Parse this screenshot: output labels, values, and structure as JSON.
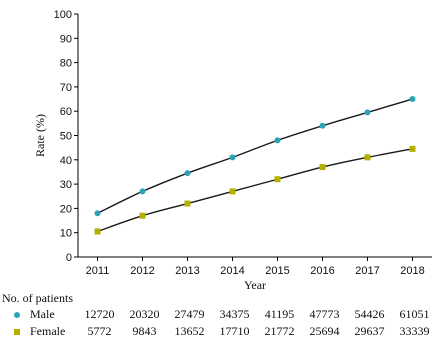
{
  "chart_data": {
    "type": "line",
    "x": [
      2011,
      2012,
      2013,
      2014,
      2015,
      2016,
      2017,
      2018
    ],
    "xlabel": "Year",
    "ylabel": "Rate (%)",
    "ylim": [
      0,
      100
    ],
    "yticks": [
      0,
      10,
      20,
      30,
      40,
      50,
      60,
      70,
      80,
      90,
      100
    ],
    "grid": false,
    "series": [
      {
        "name": "Male",
        "color": "#2aa3b5",
        "marker": "circle",
        "values": [
          18,
          27,
          34.5,
          41,
          48,
          54,
          59.5,
          65
        ]
      },
      {
        "name": "Female",
        "color": "#b5b000",
        "marker": "square",
        "values": [
          10.5,
          17,
          22,
          27,
          32,
          37,
          41,
          44.5
        ]
      }
    ],
    "line_color": "#1a1a1a"
  },
  "patients": {
    "title": "No. of patients",
    "rows": [
      {
        "name": "Male",
        "marker_color": "#2aa3b5",
        "marker": "circle",
        "values": [
          "12720",
          "20320",
          "27479",
          "34375",
          "41195",
          "47773",
          "54426",
          "61051"
        ]
      },
      {
        "name": "Female",
        "marker_color": "#b5b000",
        "marker": "square",
        "values": [
          "5772",
          "9843",
          "13652",
          "17710",
          "21772",
          "25694",
          "29637",
          "33339"
        ]
      }
    ]
  }
}
